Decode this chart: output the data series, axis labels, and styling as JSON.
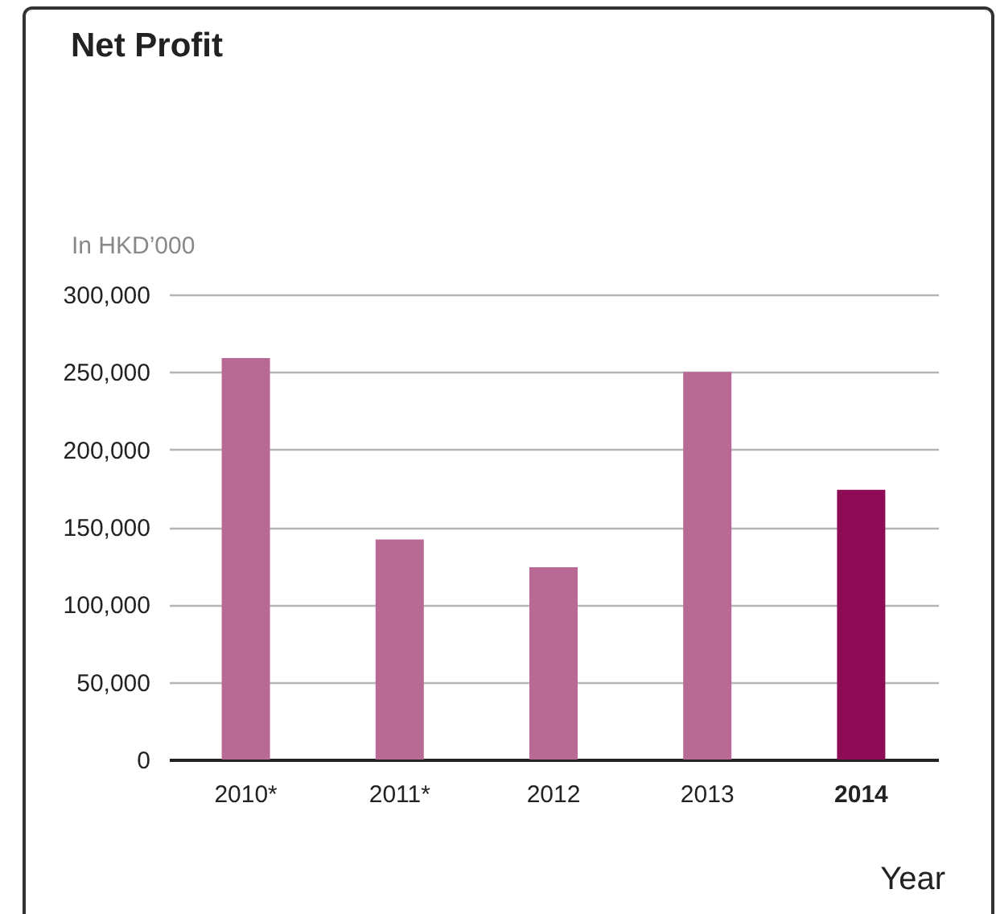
{
  "chart_data": {
    "type": "bar",
    "title": "Net Profit",
    "ylabel": "In HKD’000",
    "xlabel": "Year",
    "categories": [
      "2010*",
      "2011*",
      "2012",
      "2013",
      "2014"
    ],
    "values": [
      259000,
      142000,
      124000,
      250000,
      174000
    ],
    "colors": [
      "#b86a94",
      "#b86a94",
      "#b86a94",
      "#b86a94",
      "#8e0c55"
    ],
    "ylim": [
      0,
      300000
    ],
    "yticks": [
      0,
      {
        "value": 50000,
        "label": "50,000"
      },
      {
        "value": 100000,
        "label": "100,000"
      },
      {
        "value": 150000,
        "label": "150,000"
      },
      {
        "value": 200000,
        "label": "200,000"
      },
      {
        "value": 250000,
        "label": "250,000"
      },
      {
        "value": 300000,
        "label": "300,000"
      }
    ],
    "grid": "y",
    "legend": false
  }
}
